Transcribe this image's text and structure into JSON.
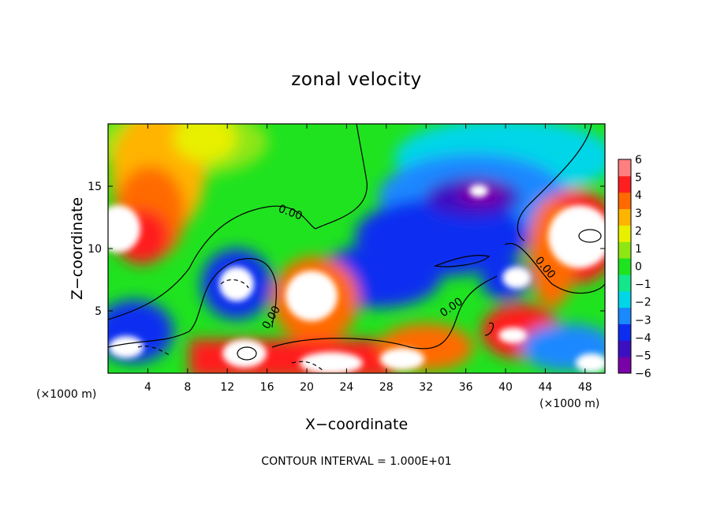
{
  "chart_data": {
    "type": "heatmap",
    "title": "zonal velocity",
    "xlabel": "X−coordinate",
    "ylabel": "Z−coordinate",
    "x_unit": "(×1000 m)",
    "x_unit_right": "(×1000 m)",
    "footer": "CONTOUR INTERVAL = 1.000E+01",
    "xlim": [
      0,
      50
    ],
    "ylim": [
      0,
      20
    ],
    "x_ticks": [
      4,
      8,
      12,
      16,
      20,
      24,
      28,
      32,
      36,
      40,
      44,
      48
    ],
    "y_ticks": [
      5,
      10,
      15
    ],
    "colorbar": {
      "range": [
        -6,
        6
      ],
      "ticks": [
        "6",
        "5",
        "4",
        "3",
        "2",
        "1",
        "0",
        "−1",
        "−2",
        "−3",
        "−4",
        "−5",
        "−6"
      ],
      "colors": [
        "#7a00a8",
        "#3d0fc2",
        "#0c2df0",
        "#1a88ff",
        "#00d6e8",
        "#14e68c",
        "#1fe31f",
        "#8ee612",
        "#e8f000",
        "#ffb400",
        "#ff6a00",
        "#ff1f1f",
        "#ff7f7f"
      ]
    },
    "contour_labels": [
      "0.00",
      "0.00",
      "0.00",
      "0.00"
    ]
  }
}
